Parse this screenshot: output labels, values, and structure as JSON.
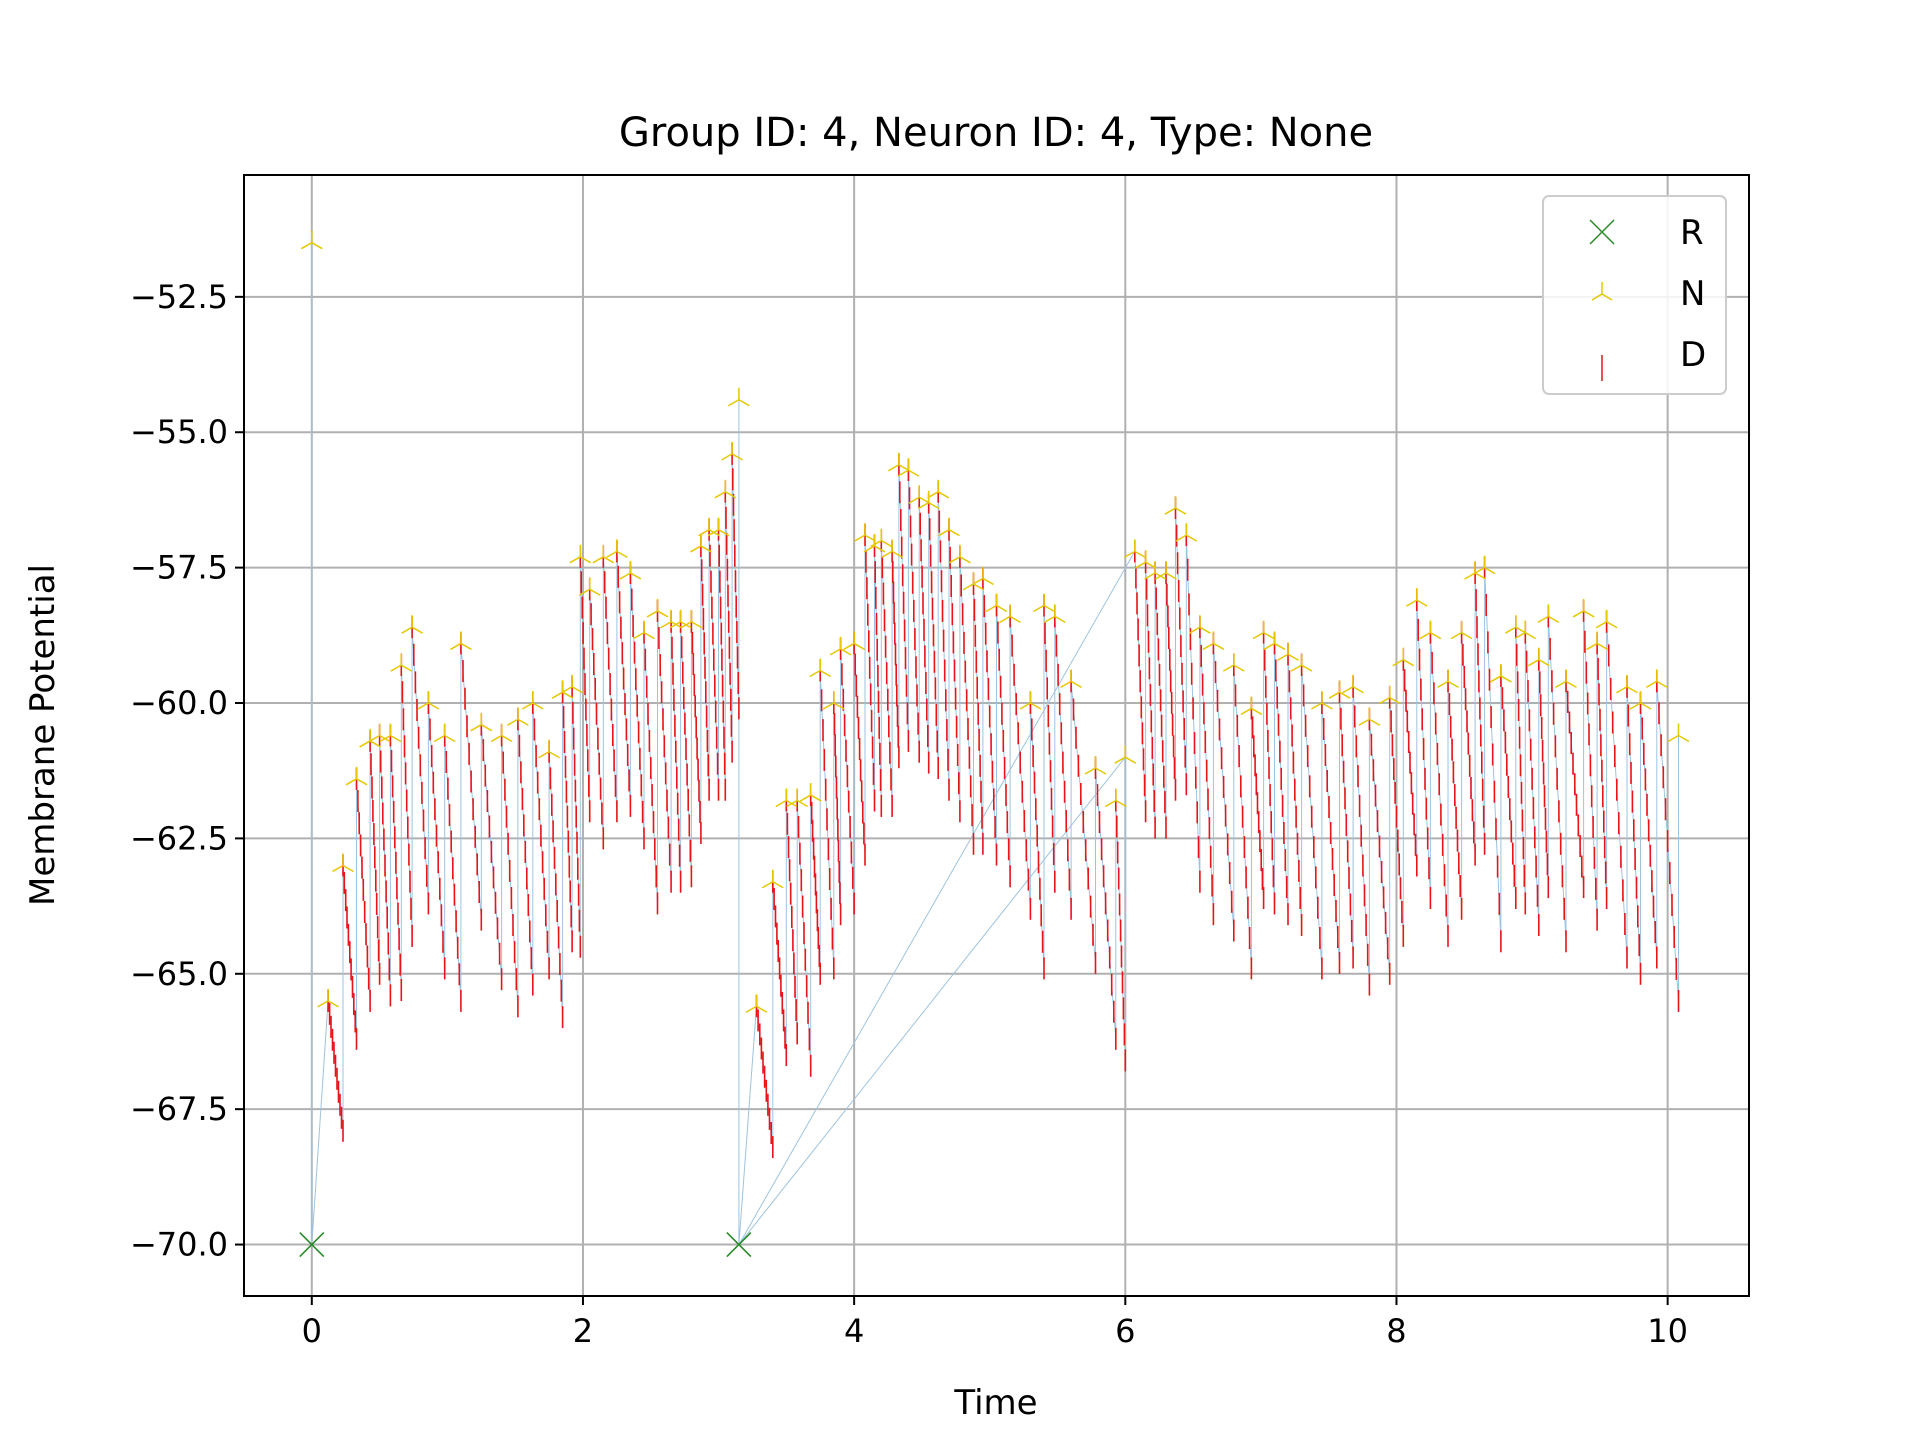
{
  "chart_data": {
    "type": "line",
    "title": "Group ID: 4, Neuron ID: 4, Type: None",
    "xlabel": "Time",
    "ylabel": "Membrane Potential",
    "xlim": [
      -0.5,
      10.6
    ],
    "ylim": [
      -70.95,
      -50.25
    ],
    "xticks": [
      0,
      2,
      4,
      6,
      8,
      10
    ],
    "yticks": [
      -70.0,
      -67.5,
      -65.0,
      -62.5,
      -60.0,
      -57.5,
      -55.0,
      -52.5
    ],
    "xtick_labels": [
      "0",
      "2",
      "4",
      "6",
      "8",
      "10"
    ],
    "ytick_labels": [
      "−70.0",
      "−67.5",
      "−65.0",
      "−62.5",
      "−60.0",
      "−57.5",
      "−55.0",
      "−52.5"
    ],
    "grid": true,
    "legend_position": "upper-right",
    "colors": {
      "trace": "#9ec3e0",
      "R": "#2a8a2a",
      "N": "#e6c800",
      "D": "#e8141a"
    },
    "series": [
      {
        "name": "R",
        "marker": "x",
        "points": [
          [
            0.0,
            -70.0
          ],
          [
            3.15,
            -70.0
          ]
        ]
      },
      {
        "name": "N",
        "marker": "tri-up",
        "points": [
          [
            0.0,
            -51.5
          ],
          [
            0.12,
            -65.5
          ],
          [
            0.23,
            -63.0
          ],
          [
            0.33,
            -61.4
          ],
          [
            0.43,
            -60.7
          ],
          [
            0.5,
            -60.6
          ],
          [
            0.58,
            -60.6
          ],
          [
            0.66,
            -59.3
          ],
          [
            0.74,
            -58.6
          ],
          [
            0.86,
            -60.0
          ],
          [
            0.98,
            -60.6
          ],
          [
            1.1,
            -58.9
          ],
          [
            1.25,
            -60.4
          ],
          [
            1.4,
            -60.6
          ],
          [
            1.52,
            -60.3
          ],
          [
            1.63,
            -60.0
          ],
          [
            1.75,
            -60.9
          ],
          [
            1.85,
            -59.8
          ],
          [
            1.92,
            -59.7
          ],
          [
            1.98,
            -57.3
          ],
          [
            2.05,
            -57.9
          ],
          [
            2.15,
            -57.3
          ],
          [
            2.25,
            -57.2
          ],
          [
            2.35,
            -57.6
          ],
          [
            2.45,
            -58.7
          ],
          [
            2.55,
            -58.3
          ],
          [
            2.65,
            -58.5
          ],
          [
            2.72,
            -58.5
          ],
          [
            2.8,
            -58.5
          ],
          [
            2.87,
            -57.1
          ],
          [
            2.93,
            -56.8
          ],
          [
            3.0,
            -56.8
          ],
          [
            3.05,
            -56.1
          ],
          [
            3.1,
            -55.4
          ],
          [
            3.15,
            -54.4
          ],
          [
            3.28,
            -65.6
          ],
          [
            3.4,
            -63.3
          ],
          [
            3.5,
            -61.8
          ],
          [
            3.58,
            -61.8
          ],
          [
            3.68,
            -61.7
          ],
          [
            3.75,
            -59.4
          ],
          [
            3.85,
            -60.0
          ],
          [
            3.9,
            -59.0
          ],
          [
            4.0,
            -58.9
          ],
          [
            4.08,
            -56.9
          ],
          [
            4.15,
            -57.1
          ],
          [
            4.2,
            -57.0
          ],
          [
            4.28,
            -57.2
          ],
          [
            4.33,
            -55.6
          ],
          [
            4.4,
            -55.7
          ],
          [
            4.48,
            -56.2
          ],
          [
            4.55,
            -56.3
          ],
          [
            4.62,
            -56.1
          ],
          [
            4.7,
            -56.8
          ],
          [
            4.78,
            -57.3
          ],
          [
            4.88,
            -57.8
          ],
          [
            4.95,
            -57.7
          ],
          [
            5.05,
            -58.2
          ],
          [
            5.15,
            -58.4
          ],
          [
            5.3,
            -60.0
          ],
          [
            5.4,
            -58.2
          ],
          [
            5.48,
            -58.4
          ],
          [
            5.6,
            -59.6
          ],
          [
            5.78,
            -61.2
          ],
          [
            5.93,
            -61.8
          ],
          [
            6.0,
            -61.0
          ],
          [
            6.07,
            -57.2
          ],
          [
            6.15,
            -57.4
          ],
          [
            6.22,
            -57.6
          ],
          [
            6.3,
            -57.6
          ],
          [
            6.37,
            -56.4
          ],
          [
            6.45,
            -56.9
          ],
          [
            6.55,
            -58.6
          ],
          [
            6.65,
            -58.9
          ],
          [
            6.8,
            -59.3
          ],
          [
            6.93,
            -60.1
          ],
          [
            7.02,
            -58.7
          ],
          [
            7.1,
            -58.9
          ],
          [
            7.2,
            -59.1
          ],
          [
            7.3,
            -59.3
          ],
          [
            7.45,
            -60.0
          ],
          [
            7.58,
            -59.8
          ],
          [
            7.68,
            -59.7
          ],
          [
            7.8,
            -60.3
          ],
          [
            7.95,
            -59.9
          ],
          [
            8.05,
            -59.2
          ],
          [
            8.15,
            -58.1
          ],
          [
            8.25,
            -58.7
          ],
          [
            8.38,
            -59.6
          ],
          [
            8.48,
            -58.7
          ],
          [
            8.58,
            -57.6
          ],
          [
            8.65,
            -57.5
          ],
          [
            8.77,
            -59.5
          ],
          [
            8.88,
            -58.6
          ],
          [
            8.95,
            -58.7
          ],
          [
            9.05,
            -59.2
          ],
          [
            9.12,
            -58.4
          ],
          [
            9.25,
            -59.6
          ],
          [
            9.38,
            -58.3
          ],
          [
            9.48,
            -58.9
          ],
          [
            9.55,
            -58.5
          ],
          [
            9.7,
            -59.7
          ],
          [
            9.8,
            -60.0
          ],
          [
            9.92,
            -59.6
          ],
          [
            10.08,
            -60.6
          ]
        ]
      },
      {
        "name": "D",
        "marker": "vline",
        "segments": [
          [
            0.12,
            -65.5,
            0.23,
            -67.9
          ],
          [
            0.23,
            -63.0,
            0.33,
            -66.2
          ],
          [
            0.33,
            -61.4,
            0.43,
            -65.5
          ],
          [
            0.43,
            -60.7,
            0.5,
            -65.0
          ],
          [
            0.5,
            -60.6,
            0.58,
            -65.4
          ],
          [
            0.58,
            -60.6,
            0.66,
            -65.3
          ],
          [
            0.66,
            -59.3,
            0.74,
            -64.3
          ],
          [
            0.74,
            -58.6,
            0.86,
            -63.7
          ],
          [
            0.86,
            -60.0,
            0.98,
            -64.9
          ],
          [
            0.98,
            -60.6,
            1.1,
            -65.5
          ],
          [
            1.1,
            -58.9,
            1.25,
            -64.0
          ],
          [
            1.25,
            -60.4,
            1.4,
            -65.1
          ],
          [
            1.4,
            -60.6,
            1.52,
            -65.6
          ],
          [
            1.52,
            -60.3,
            1.63,
            -65.2
          ],
          [
            1.63,
            -60.0,
            1.75,
            -64.9
          ],
          [
            1.75,
            -60.9,
            1.85,
            -65.8
          ],
          [
            1.85,
            -59.8,
            1.92,
            -64.4
          ],
          [
            1.92,
            -59.7,
            1.98,
            -64.5
          ],
          [
            1.98,
            -57.3,
            2.05,
            -62.0
          ],
          [
            2.05,
            -57.9,
            2.15,
            -62.5
          ],
          [
            2.15,
            -57.3,
            2.25,
            -62.0
          ],
          [
            2.25,
            -57.2,
            2.35,
            -61.9
          ],
          [
            2.35,
            -57.6,
            2.45,
            -62.5
          ],
          [
            2.45,
            -58.7,
            2.55,
            -63.7
          ],
          [
            2.55,
            -58.3,
            2.65,
            -63.3
          ],
          [
            2.65,
            -58.5,
            2.72,
            -63.3
          ],
          [
            2.72,
            -58.5,
            2.8,
            -63.2
          ],
          [
            2.8,
            -58.5,
            2.87,
            -62.4
          ],
          [
            2.87,
            -57.1,
            2.93,
            -61.6
          ],
          [
            2.93,
            -56.8,
            3.0,
            -61.6
          ],
          [
            3.0,
            -56.8,
            3.05,
            -61.6
          ],
          [
            3.05,
            -56.1,
            3.1,
            -60.9
          ],
          [
            3.1,
            -55.4,
            3.15,
            -60.1
          ],
          [
            3.28,
            -65.6,
            3.4,
            -68.2
          ],
          [
            3.4,
            -63.3,
            3.5,
            -66.5
          ],
          [
            3.5,
            -61.8,
            3.58,
            -66.1
          ],
          [
            3.58,
            -61.8,
            3.68,
            -66.7
          ],
          [
            3.68,
            -61.7,
            3.75,
            -65.0
          ],
          [
            3.75,
            -59.4,
            3.85,
            -64.9
          ],
          [
            3.85,
            -60.0,
            3.9,
            -63.9
          ],
          [
            3.9,
            -59.0,
            4.0,
            -63.7
          ],
          [
            4.0,
            -58.9,
            4.08,
            -62.8
          ],
          [
            4.08,
            -56.9,
            4.15,
            -61.8
          ],
          [
            4.15,
            -57.1,
            4.2,
            -61.9
          ],
          [
            4.2,
            -57.0,
            4.28,
            -61.9
          ],
          [
            4.28,
            -57.2,
            4.33,
            -61.0
          ],
          [
            4.33,
            -55.6,
            4.4,
            -60.7
          ],
          [
            4.4,
            -55.7,
            4.48,
            -60.9
          ],
          [
            4.48,
            -56.2,
            4.55,
            -61.1
          ],
          [
            4.55,
            -56.3,
            4.62,
            -61.2
          ],
          [
            4.62,
            -56.1,
            4.7,
            -61.6
          ],
          [
            4.7,
            -56.8,
            4.78,
            -62.0
          ],
          [
            4.78,
            -57.3,
            4.88,
            -62.6
          ],
          [
            4.88,
            -57.8,
            4.95,
            -62.6
          ],
          [
            4.95,
            -57.7,
            5.05,
            -62.8
          ],
          [
            5.05,
            -58.2,
            5.15,
            -63.2
          ],
          [
            5.15,
            -58.4,
            5.3,
            -63.8
          ],
          [
            5.3,
            -60.0,
            5.4,
            -64.9
          ],
          [
            5.4,
            -58.2,
            5.48,
            -63.3
          ],
          [
            5.48,
            -58.4,
            5.6,
            -63.8
          ],
          [
            5.6,
            -59.6,
            5.78,
            -64.8
          ],
          [
            5.78,
            -61.2,
            5.93,
            -66.2
          ],
          [
            5.93,
            -61.8,
            6.0,
            -66.6
          ],
          [
            6.07,
            -57.2,
            6.15,
            -62.0
          ],
          [
            6.15,
            -57.4,
            6.22,
            -62.3
          ],
          [
            6.22,
            -57.6,
            6.3,
            -62.3
          ],
          [
            6.3,
            -57.6,
            6.37,
            -61.6
          ],
          [
            6.37,
            -56.4,
            6.45,
            -61.5
          ],
          [
            6.45,
            -56.9,
            6.55,
            -63.3
          ],
          [
            6.55,
            -58.6,
            6.65,
            -63.9
          ],
          [
            6.65,
            -58.9,
            6.8,
            -64.2
          ],
          [
            6.8,
            -59.3,
            6.93,
            -64.9
          ],
          [
            6.93,
            -60.1,
            7.02,
            -63.6
          ],
          [
            7.02,
            -58.7,
            7.1,
            -63.7
          ],
          [
            7.1,
            -58.9,
            7.2,
            -63.9
          ],
          [
            7.2,
            -59.1,
            7.3,
            -64.1
          ],
          [
            7.3,
            -59.3,
            7.45,
            -64.9
          ],
          [
            7.45,
            -60.0,
            7.58,
            -64.8
          ],
          [
            7.58,
            -59.8,
            7.68,
            -64.7
          ],
          [
            7.68,
            -59.7,
            7.8,
            -65.2
          ],
          [
            7.8,
            -60.3,
            7.95,
            -65.0
          ],
          [
            7.95,
            -59.9,
            8.05,
            -64.3
          ],
          [
            8.05,
            -59.2,
            8.15,
            -63.0
          ],
          [
            8.15,
            -58.1,
            8.25,
            -63.6
          ],
          [
            8.25,
            -58.7,
            8.38,
            -64.3
          ],
          [
            8.38,
            -59.6,
            8.48,
            -63.8
          ],
          [
            8.48,
            -58.7,
            8.58,
            -62.8
          ],
          [
            8.58,
            -57.6,
            8.65,
            -62.6
          ],
          [
            8.65,
            -57.5,
            8.77,
            -64.4
          ],
          [
            8.77,
            -59.5,
            8.88,
            -63.6
          ],
          [
            8.88,
            -58.6,
            8.95,
            -63.7
          ],
          [
            8.95,
            -58.7,
            9.05,
            -64.1
          ],
          [
            9.05,
            -59.2,
            9.12,
            -63.4
          ],
          [
            9.12,
            -58.4,
            9.25,
            -64.4
          ],
          [
            9.25,
            -59.6,
            9.38,
            -63.4
          ],
          [
            9.38,
            -58.3,
            9.48,
            -64.0
          ],
          [
            9.48,
            -58.9,
            9.55,
            -63.6
          ],
          [
            9.55,
            -58.5,
            9.7,
            -64.7
          ],
          [
            9.7,
            -59.7,
            9.8,
            -65.0
          ],
          [
            9.8,
            -60.0,
            9.92,
            -64.7
          ],
          [
            9.92,
            -59.6,
            10.08,
            -65.5
          ]
        ]
      }
    ]
  }
}
